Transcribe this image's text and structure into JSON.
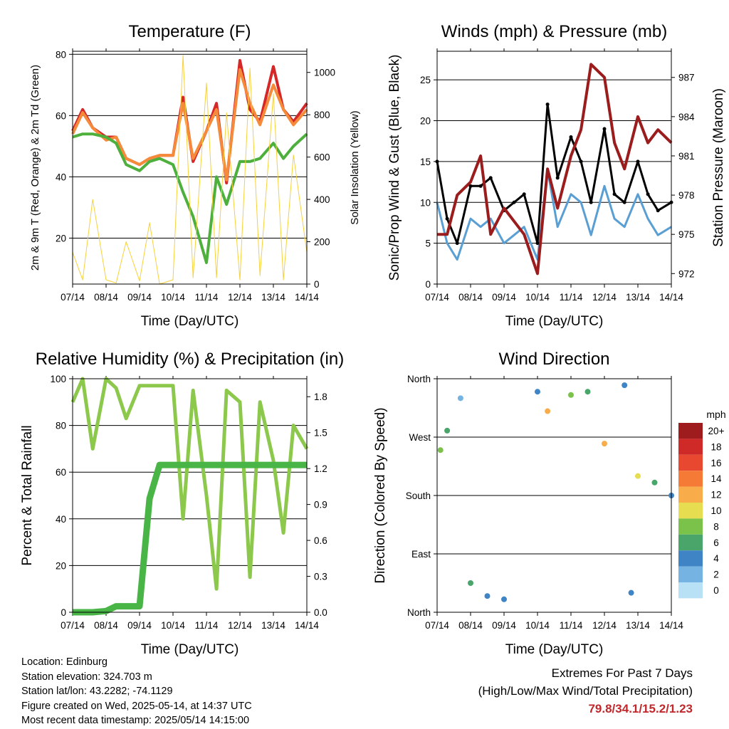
{
  "charts_meta": {
    "xlabel": "Time (Day/UTC)",
    "x_ticks": [
      "07/14",
      "08/14",
      "09/14",
      "10/14",
      "11/14",
      "12/14",
      "13/14",
      "14/14"
    ]
  },
  "chart_data": [
    {
      "id": "temperature",
      "type": "line",
      "title": "Temperature (F)",
      "ylabel": "2m & 9m T (Red, Orange) & 2m Td (Green)",
      "y2label": "Solar Insolation (Yellow)",
      "xlabel": "Time (Day/UTC)",
      "x": [
        7.0,
        7.3,
        7.6,
        8.0,
        8.3,
        8.6,
        9.0,
        9.3,
        9.6,
        10.0,
        10.3,
        10.6,
        11.0,
        11.3,
        11.6,
        12.0,
        12.3,
        12.6,
        13.0,
        13.3,
        13.6,
        14.0
      ],
      "ylim": [
        5,
        81
      ],
      "yticks": [
        20,
        40,
        60,
        80
      ],
      "y2lim": [
        0,
        1100
      ],
      "y2ticks": [
        0,
        200,
        400,
        600,
        800,
        1000
      ],
      "grid": true,
      "series": [
        {
          "color": "#d62728",
          "values": [
            55,
            62,
            56,
            53,
            53,
            46,
            44,
            46,
            47,
            47,
            66,
            45,
            55,
            64,
            38,
            78,
            62,
            58,
            76,
            62,
            58,
            64
          ]
        },
        {
          "color": "#f58a3a",
          "values": [
            54,
            61,
            56,
            52,
            53,
            46,
            44,
            46,
            47,
            47,
            64,
            46,
            55,
            62,
            39,
            75,
            64,
            57,
            70,
            62,
            57,
            62
          ]
        },
        {
          "color": "#4daf3c",
          "values": [
            53,
            54,
            54,
            53,
            51,
            44,
            42,
            45,
            46,
            44,
            35,
            27,
            12,
            40,
            31,
            45,
            45,
            46,
            51,
            46,
            50,
            54
          ]
        },
        {
          "color": "#f7d13b",
          "values": [
            150,
            20,
            400,
            20,
            5,
            200,
            15,
            290,
            0,
            20,
            1080,
            30,
            950,
            30,
            810,
            20,
            1020,
            40,
            900,
            20,
            610,
            150
          ]
        }
      ]
    },
    {
      "id": "winds",
      "type": "line",
      "title": "Winds (mph) & Pressure (mb)",
      "ylabel": "Sonic/Prop Wind & Gust (Blue, Black)",
      "y2label": "Station Pressure (Maroon)",
      "xlabel": "Time (Day/UTC)",
      "x": [
        7.0,
        7.3,
        7.6,
        8.0,
        8.3,
        8.6,
        9.0,
        9.3,
        9.6,
        10.0,
        10.3,
        10.6,
        11.0,
        11.3,
        11.6,
        12.0,
        12.3,
        12.6,
        13.0,
        13.3,
        13.6,
        14.0
      ],
      "ylim": [
        0,
        28.5
      ],
      "yticks": [
        0,
        5,
        10,
        15,
        20,
        25
      ],
      "y2lim": [
        971.2,
        989
      ],
      "y2ticks": [
        972,
        975,
        978,
        981,
        984,
        987
      ],
      "grid": true,
      "series": [
        {
          "color": "#5a9fd4",
          "values": [
            10,
            5,
            3,
            8,
            7,
            8,
            5,
            6,
            7,
            3,
            14,
            7,
            11,
            10,
            6,
            12,
            8,
            7,
            11,
            8,
            6,
            7
          ]
        },
        {
          "color": "#000000",
          "values": [
            15,
            8,
            5,
            12,
            12,
            13,
            9,
            10,
            11,
            5,
            22,
            13,
            18,
            15,
            10,
            19,
            11,
            10,
            15,
            11,
            9,
            10
          ]
        },
        {
          "color": "#9b1c1c",
          "values": [
            975,
            975,
            978,
            979,
            981,
            975,
            977,
            976,
            975,
            972,
            980,
            977,
            981,
            983,
            988,
            987,
            982,
            980,
            984,
            982,
            983,
            982
          ]
        }
      ]
    },
    {
      "id": "humidity",
      "type": "line",
      "title": "Relative Humidity (%) & Precipitation (in)",
      "ylabel": "Percent & Total Rainfall",
      "xlabel": "Time (Day/UTC)",
      "x": [
        7.0,
        7.3,
        7.6,
        8.0,
        8.3,
        8.6,
        9.0,
        9.3,
        9.6,
        10.0,
        10.3,
        10.6,
        11.0,
        11.3,
        11.6,
        12.0,
        12.3,
        12.6,
        13.0,
        13.3,
        13.6,
        14.0
      ],
      "ylim": [
        0,
        100
      ],
      "yticks": [
        0,
        20,
        40,
        60,
        80,
        100
      ],
      "y2lim": [
        0,
        1.95
      ],
      "y2ticks": [
        0.0,
        0.3,
        0.6,
        0.9,
        1.2,
        1.5,
        1.8
      ],
      "grid": true,
      "series": [
        {
          "color": "#8cc84b",
          "values": [
            90,
            100,
            70,
            100,
            96,
            83,
            97,
            97,
            97,
            97,
            40,
            95,
            50,
            10,
            95,
            90,
            15,
            90,
            65,
            34,
            80,
            70
          ]
        },
        {
          "color": "#4ab547",
          "values": [
            0,
            0,
            0,
            0.01,
            0.05,
            0.05,
            0.05,
            0.95,
            1.23,
            1.23,
            1.23,
            1.23,
            1.23,
            1.23,
            1.23,
            1.23,
            1.23,
            1.23,
            1.23,
            1.23,
            1.23,
            1.23
          ]
        }
      ]
    },
    {
      "id": "wind_direction",
      "type": "scatter",
      "title": "Wind Direction",
      "ylabel": "Direction (Colored By Speed)",
      "xlabel": "Time (Day/UTC)",
      "y_categories": [
        "North",
        "East",
        "South",
        "West",
        "North"
      ],
      "colorbar": {
        "unit": "mph",
        "levels": [
          "20+",
          "18",
          "16",
          "14",
          "12",
          "10",
          "8",
          "6",
          "4",
          "2",
          "0"
        ],
        "colors": [
          "#9e1b1e",
          "#cf2a28",
          "#e8482f",
          "#f47a35",
          "#f8ac4a",
          "#e6de50",
          "#7bc24b",
          "#4aa56a",
          "#3f84c4",
          "#75b4e2",
          "#b9e1f6"
        ]
      },
      "points": [
        {
          "x": 7.1,
          "y": 250,
          "speed": 8
        },
        {
          "x": 7.3,
          "y": 280,
          "speed": 6
        },
        {
          "x": 7.7,
          "y": 330,
          "speed": 2
        },
        {
          "x": 8.0,
          "y": 45,
          "speed": 6
        },
        {
          "x": 8.5,
          "y": 25,
          "speed": 4
        },
        {
          "x": 9.0,
          "y": 20,
          "speed": 4
        },
        {
          "x": 10.0,
          "y": 340,
          "speed": 4
        },
        {
          "x": 10.3,
          "y": 310,
          "speed": 12
        },
        {
          "x": 11.0,
          "y": 335,
          "speed": 8
        },
        {
          "x": 11.5,
          "y": 340,
          "speed": 6
        },
        {
          "x": 12.0,
          "y": 260,
          "speed": 12
        },
        {
          "x": 12.6,
          "y": 350,
          "speed": 4
        },
        {
          "x": 12.8,
          "y": 30,
          "speed": 4
        },
        {
          "x": 13.0,
          "y": 210,
          "speed": 10
        },
        {
          "x": 13.5,
          "y": 200,
          "speed": 6
        },
        {
          "x": 14.0,
          "y": 180,
          "speed": 4
        }
      ]
    }
  ],
  "footer": {
    "location": "Location: Edinburg",
    "elevation": "Station elevation: 324.703 m",
    "latlon": "Station lat/lon: 43.2282; -74.1129",
    "created": "Figure created on Wed, 2025-05-14, at 14:37 UTC",
    "recent": "Most recent data timestamp: 2025/05/14 14:15:00"
  },
  "extremes": {
    "title": "Extremes For Past 7 Days",
    "subtitle": "(High/Low/Max Wind/Total Precipitation)",
    "values": "79.8/34.1/15.2/1.23"
  }
}
